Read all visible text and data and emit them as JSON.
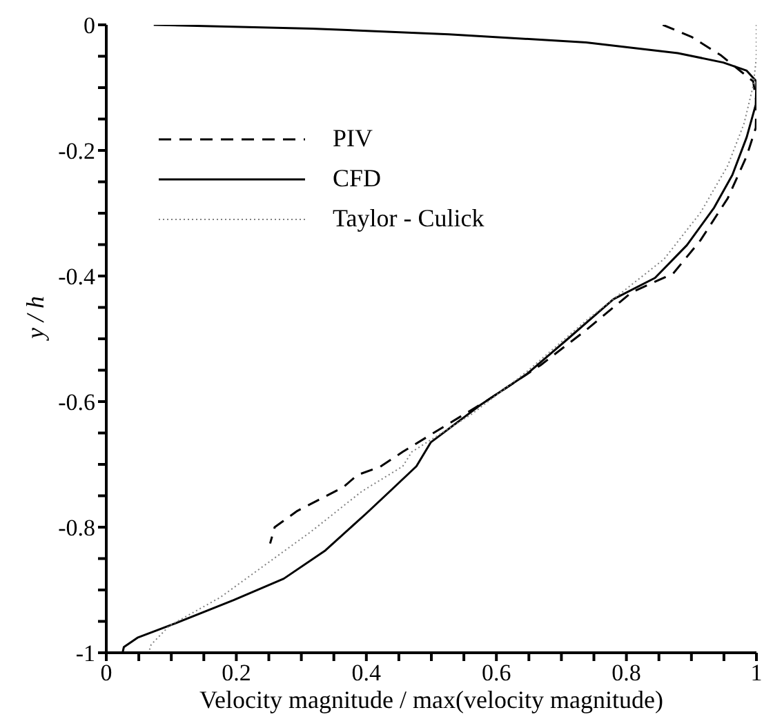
{
  "chart_data": {
    "type": "line",
    "xlabel": "Velocity magnitude / max(velocity magnitude)",
    "ylabel": "y / h",
    "xlim": [
      0,
      1
    ],
    "xticks": [
      0,
      {
        "value": 0.05,
        "label": null
      },
      {
        "value": 0.1,
        "label": null
      },
      {
        "value": 0.15,
        "label": null
      },
      0.2,
      {
        "value": 0.25,
        "label": null
      },
      {
        "value": 0.3,
        "label": null
      },
      {
        "value": 0.35,
        "label": null
      },
      0.4,
      {
        "value": 0.45,
        "label": null
      },
      {
        "value": 0.5,
        "label": null
      },
      {
        "value": 0.55,
        "label": null
      },
      0.6,
      {
        "value": 0.65,
        "label": null
      },
      {
        "value": 0.7,
        "label": null
      },
      {
        "value": 0.75,
        "label": null
      },
      0.8,
      {
        "value": 0.85,
        "label": null
      },
      {
        "value": 0.9,
        "label": null
      },
      {
        "value": 0.95,
        "label": null
      },
      1
    ],
    "ylim": [
      -1,
      0
    ],
    "yticks": [
      -1,
      {
        "value": -0.95,
        "label": null
      },
      {
        "value": -0.9,
        "label": null
      },
      {
        "value": -0.85,
        "label": null
      },
      -0.8,
      {
        "value": -0.75,
        "label": null
      },
      {
        "value": -0.7,
        "label": null
      },
      {
        "value": -0.65,
        "label": null
      },
      -0.6,
      {
        "value": -0.55,
        "label": null
      },
      {
        "value": -0.5,
        "label": null
      },
      {
        "value": -0.45,
        "label": null
      },
      -0.4,
      {
        "value": -0.35,
        "label": null
      },
      {
        "value": -0.3,
        "label": null
      },
      {
        "value": -0.25,
        "label": null
      },
      -0.2,
      {
        "value": -0.15,
        "label": null
      },
      {
        "value": -0.1,
        "label": null
      },
      {
        "value": -0.05,
        "label": null
      },
      0
    ],
    "grid": false,
    "legend": "top left",
    "marker": "none",
    "series": [
      {
        "name": "PIV",
        "color": "#000000",
        "line_style": "dashed",
        "x": [
          0.856,
          0.9,
          0.946,
          0.977,
          0.995,
          1.0,
          0.999,
          0.985,
          0.956,
          0.914,
          0.872,
          0.808,
          0.738,
          0.668,
          0.583,
          0.527,
          0.456,
          0.421,
          0.386,
          0.365,
          0.294,
          0.259,
          0.252
        ],
        "values": [
          0,
          -0.019,
          -0.049,
          -0.075,
          -0.09,
          -0.123,
          -0.164,
          -0.209,
          -0.276,
          -0.343,
          -0.396,
          -0.426,
          -0.486,
          -0.542,
          -0.6,
          -0.635,
          -0.68,
          -0.704,
          -0.717,
          -0.736,
          -0.774,
          -0.8,
          -0.826
        ]
      },
      {
        "name": "CFD",
        "color": "#000000",
        "line_style": "solid",
        "x": [
          0.073,
          0.316,
          0.527,
          0.738,
          0.879,
          0.949,
          0.985,
          1.0,
          0.999,
          0.985,
          0.963,
          0.935,
          0.893,
          0.844,
          0.78,
          0.71,
          0.646,
          0.576,
          0.499,
          0.477,
          0.432,
          0.4,
          0.337,
          0.273,
          0.196,
          0.104,
          0.048,
          0.027,
          0.025
        ],
        "values": [
          0,
          -0.006,
          -0.015,
          -0.028,
          -0.045,
          -0.06,
          -0.073,
          -0.09,
          -0.127,
          -0.179,
          -0.239,
          -0.291,
          -0.351,
          -0.403,
          -0.437,
          -0.5,
          -0.557,
          -0.605,
          -0.665,
          -0.703,
          -0.747,
          -0.778,
          -0.837,
          -0.882,
          -0.916,
          -0.954,
          -0.976,
          -0.991,
          -1
        ]
      },
      {
        "name": "Taylor - Culick",
        "color": "#808080",
        "line_style": "dotted",
        "x": [
          1.0,
          1.0,
          0.995,
          0.981,
          0.956,
          0.914,
          0.858,
          0.738,
          0.646,
          0.562,
          0.47,
          0.456,
          0.393,
          0.315,
          0.175,
          0.097,
          0.069,
          0.065
        ],
        "values": [
          0,
          -0.052,
          -0.097,
          -0.157,
          -0.224,
          -0.299,
          -0.373,
          -0.471,
          -0.553,
          -0.62,
          -0.68,
          -0.703,
          -0.743,
          -0.807,
          -0.912,
          -0.957,
          -0.987,
          -1
        ]
      }
    ]
  }
}
